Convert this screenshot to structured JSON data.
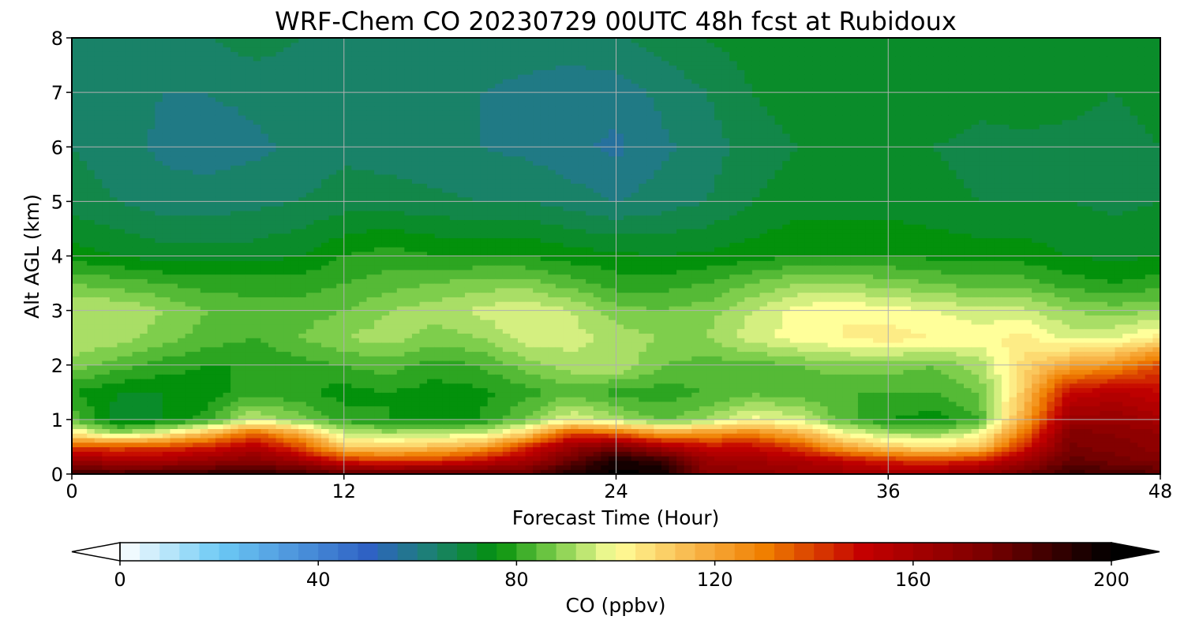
{
  "chart_data": {
    "type": "heatmap",
    "title": "WRF-Chem CO  20230729 00UTC 48h fcst at Rubidoux",
    "xlabel": "Forecast Time (Hour)",
    "ylabel": "Alt AGL (km)",
    "xlim": [
      0,
      48
    ],
    "ylim": [
      0,
      8
    ],
    "x_ticks": [
      "0",
      "12",
      "24",
      "36",
      "48"
    ],
    "y_ticks": [
      "0",
      "1",
      "2",
      "3",
      "4",
      "5",
      "6",
      "7",
      "8"
    ],
    "grid": true,
    "colorbar": {
      "label": "CO  (ppbv)",
      "min": 0,
      "max": 200,
      "ticks": [
        "0",
        "40",
        "80",
        "120",
        "160",
        "200"
      ],
      "extend": "both",
      "orientation": "horizontal",
      "colors": [
        {
          "value": 0,
          "color": "#ffffff"
        },
        {
          "value": 20,
          "color": "#6ccaf5"
        },
        {
          "value": 50,
          "color": "#2f62c4"
        },
        {
          "value": 62,
          "color": "#1d7f78"
        },
        {
          "value": 76,
          "color": "#03910b"
        },
        {
          "value": 88,
          "color": "#7ece4c"
        },
        {
          "value": 100,
          "color": "#ffff9a"
        },
        {
          "value": 115,
          "color": "#f9b94e"
        },
        {
          "value": 130,
          "color": "#f07f00"
        },
        {
          "value": 150,
          "color": "#c40000"
        },
        {
          "value": 175,
          "color": "#7a0000"
        },
        {
          "value": 200,
          "color": "#000000"
        }
      ]
    },
    "x": [
      0,
      2,
      4,
      6,
      8,
      10,
      12,
      14,
      16,
      18,
      20,
      22,
      24,
      26,
      28,
      30,
      32,
      34,
      36,
      38,
      40,
      42,
      44,
      46,
      48
    ],
    "y": [
      0,
      0.25,
      0.5,
      0.75,
      1,
      1.5,
      2,
      2.5,
      3,
      3.5,
      4,
      5,
      6,
      7,
      8
    ],
    "z": [
      [
        188,
        186,
        188,
        190,
        192,
        188,
        182,
        182,
        185,
        180,
        180,
        195,
        200,
        198,
        170,
        168,
        166,
        164,
        162,
        164,
        170,
        178,
        188,
        186,
        182
      ],
      [
        165,
        160,
        160,
        165,
        170,
        162,
        145,
        140,
        142,
        150,
        160,
        178,
        196,
        190,
        165,
        162,
        158,
        152,
        144,
        140,
        146,
        162,
        180,
        176,
        172
      ],
      [
        140,
        138,
        140,
        146,
        156,
        140,
        112,
        110,
        114,
        120,
        142,
        165,
        175,
        160,
        150,
        150,
        140,
        120,
        110,
        106,
        112,
        145,
        175,
        172,
        168
      ],
      [
        105,
        90,
        100,
        115,
        135,
        118,
        95,
        92,
        94,
        95,
        110,
        140,
        135,
        122,
        125,
        128,
        118,
        100,
        92,
        90,
        98,
        132,
        172,
        170,
        166
      ],
      [
        85,
        72,
        74,
        80,
        95,
        88,
        80,
        78,
        76,
        78,
        86,
        98,
        92,
        85,
        90,
        100,
        96,
        84,
        78,
        76,
        82,
        120,
        164,
        165,
        160
      ],
      [
        78,
        74,
        74,
        76,
        80,
        79,
        76,
        78,
        76,
        77,
        80,
        84,
        80,
        80,
        82,
        85,
        84,
        82,
        82,
        82,
        86,
        112,
        150,
        155,
        150
      ],
      [
        88,
        84,
        80,
        78,
        78,
        80,
        82,
        84,
        80,
        82,
        88,
        92,
        94,
        86,
        84,
        84,
        86,
        88,
        88,
        86,
        92,
        108,
        120,
        125,
        140
      ],
      [
        94,
        92,
        88,
        84,
        82,
        86,
        90,
        92,
        88,
        90,
        96,
        96,
        92,
        90,
        90,
        96,
        100,
        102,
        104,
        102,
        100,
        104,
        96,
        98,
        104
      ],
      [
        94,
        94,
        90,
        86,
        84,
        84,
        86,
        90,
        92,
        95,
        98,
        94,
        88,
        86,
        88,
        94,
        100,
        102,
        100,
        98,
        96,
        95,
        90,
        88,
        90
      ],
      [
        86,
        84,
        82,
        80,
        80,
        80,
        82,
        84,
        86,
        88,
        88,
        84,
        80,
        80,
        82,
        86,
        90,
        90,
        88,
        86,
        84,
        84,
        80,
        78,
        80
      ],
      [
        76,
        74,
        72,
        72,
        72,
        74,
        78,
        80,
        78,
        78,
        78,
        76,
        75,
        74,
        75,
        76,
        78,
        78,
        78,
        77,
        76,
        76,
        74,
        73,
        74
      ],
      [
        68,
        66,
        64,
        64,
        65,
        66,
        68,
        68,
        67,
        66,
        66,
        64,
        62,
        64,
        66,
        70,
        72,
        72,
        72,
        71,
        70,
        70,
        70,
        69,
        70
      ],
      [
        66,
        64,
        61,
        60,
        61,
        63,
        65,
        64,
        63,
        62,
        61,
        59,
        57,
        61,
        64,
        68,
        70,
        71,
        71,
        70,
        69,
        69,
        69,
        68,
        70
      ],
      [
        65,
        64,
        62,
        62,
        63,
        64,
        65,
        64,
        63,
        62,
        61,
        60,
        60,
        63,
        66,
        70,
        72,
        73,
        73,
        72,
        71,
        72,
        71,
        70,
        72
      ],
      [
        66,
        66,
        65,
        66,
        68,
        66,
        64,
        64,
        64,
        64,
        64,
        64,
        65,
        68,
        70,
        72,
        73,
        74,
        74,
        73,
        73,
        74,
        74,
        74,
        74
      ]
    ]
  }
}
